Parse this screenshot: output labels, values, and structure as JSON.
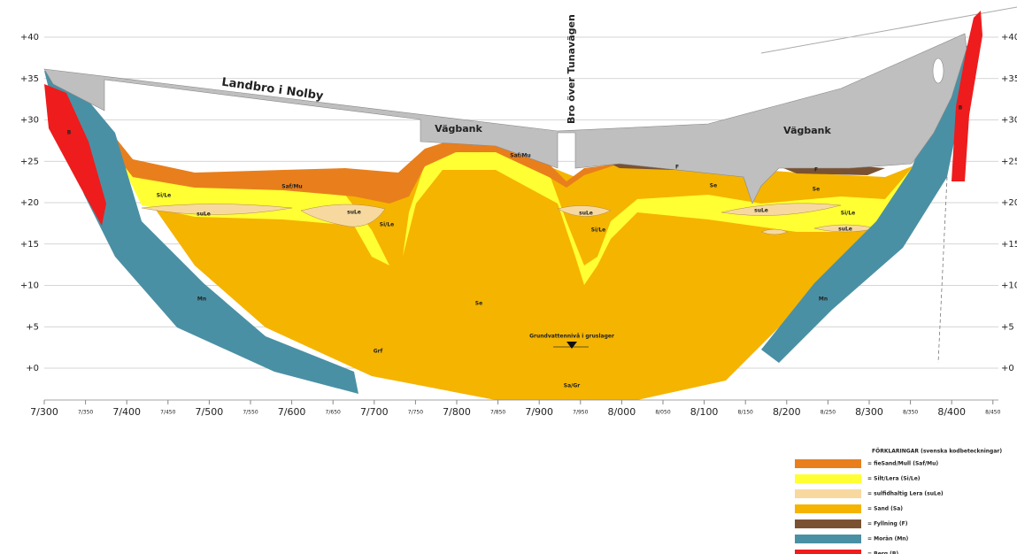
{
  "axis": {
    "left_ticks": [
      "+40",
      "+35",
      "+30",
      "+25",
      "+20",
      "+15",
      "+10",
      "+5",
      "+0"
    ],
    "right_ticks": [
      "+40",
      "+35",
      "+30",
      "+25",
      "+20",
      "+15",
      "+10",
      "+5",
      "+0"
    ],
    "bottom_ticks": [
      "7/300",
      "7/350",
      "7/400",
      "7/450",
      "7/500",
      "7/550",
      "7/600",
      "7/650",
      "7/700",
      "7/750",
      "7/800",
      "7/850",
      "7/900",
      "7/950",
      "8/000",
      "8/050",
      "8/100",
      "8/150",
      "8/200",
      "8/250",
      "8/300",
      "8/350",
      "8/400",
      "8/450"
    ]
  },
  "labels": {
    "bridge_nolby": "Landbro i Nolby",
    "bridge_tuna": "Bro över Tunavägen",
    "embankment_left": "Vägbank",
    "embankment_right": "Vägbank",
    "groundwater": "Grundvattennivå i gruslager"
  },
  "layer_labels": [
    "Saf/Mu",
    "Saf/Mu",
    "Si/Le",
    "suLe",
    "suLe",
    "Si/Le",
    "Si/Le",
    "suLe",
    "Se",
    "suLe",
    "Si/Le",
    "suLe",
    "Se",
    "F",
    "F",
    "Mn",
    "Mn",
    "Grf",
    "Se",
    "Sa/Gr",
    "B",
    "B"
  ],
  "legend": {
    "title": "FÖRKLARINGAR (svenska kodbeteckningar)",
    "items": [
      "= fieSand/Mull (Saf/Mu)",
      "= Silt/Lera (Si/Le)",
      "= sulfidhaltig Lera (suLe)",
      "= Sand (Sa)",
      "= Fyllning (F)",
      "= Morän (Mn)",
      "= Berg (B)"
    ]
  }
}
